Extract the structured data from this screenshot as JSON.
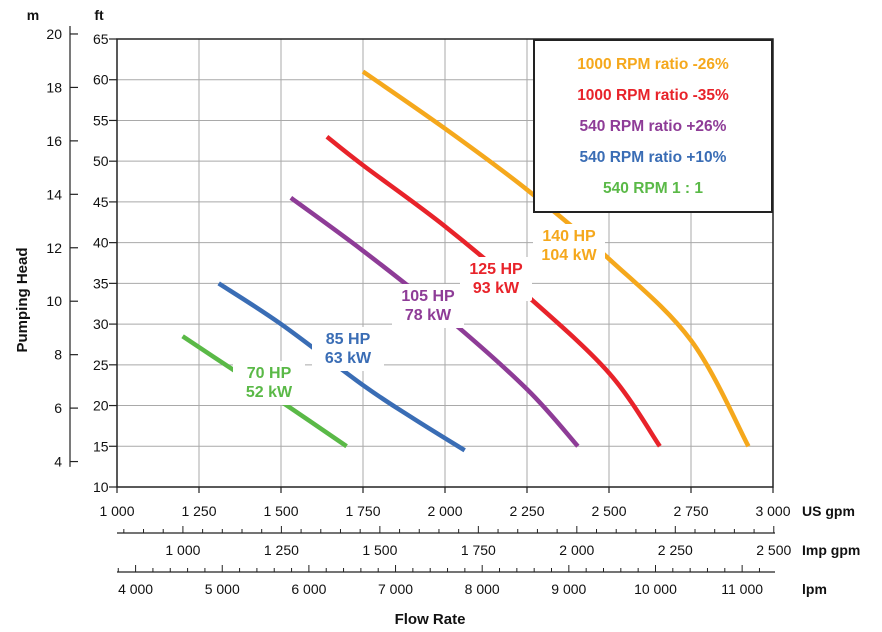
{
  "chart_data": {
    "type": "line",
    "xlabel": "Flow Rate",
    "ylabel": "Pumping Head",
    "x_primary": {
      "unit": "US gpm",
      "range": [
        1000,
        3000
      ],
      "ticks": [
        1000,
        1250,
        1500,
        1750,
        2000,
        2250,
        2500,
        2750,
        3000
      ],
      "tick_labels": [
        "1 000",
        "1 250",
        "1 500",
        "1 750",
        "2 000",
        "2 250",
        "2 500",
        "2 750",
        "3 000"
      ]
    },
    "x_secondary_imp": {
      "unit": "Imp gpm",
      "ticks": [
        1000,
        1250,
        1500,
        1750,
        2000,
        2250,
        2500
      ],
      "tick_labels": [
        "1 000",
        "1 250",
        "1 500",
        "1 750",
        "2 000",
        "2 250",
        "2 500"
      ]
    },
    "x_secondary_lpm": {
      "unit": "lpm",
      "ticks": [
        4000,
        5000,
        6000,
        7000,
        8000,
        9000,
        10000,
        11000
      ],
      "tick_labels": [
        "4 000",
        "5 000",
        "6 000",
        "7 000",
        "8 000",
        "9 000",
        "10 000",
        "11 000"
      ]
    },
    "y_primary": {
      "unit": "ft",
      "range": [
        10,
        65
      ],
      "ticks": [
        10,
        15,
        20,
        25,
        30,
        35,
        40,
        45,
        50,
        55,
        60,
        65
      ],
      "tick_labels": [
        "10",
        "15",
        "20",
        "25",
        "30",
        "35",
        "40",
        "45",
        "50",
        "55",
        "60",
        "65"
      ]
    },
    "y_secondary": {
      "unit": "m",
      "ticks": [
        4,
        6,
        8,
        10,
        12,
        14,
        16,
        18,
        20
      ],
      "tick_labels": [
        "4",
        "6",
        "8",
        "10",
        "12",
        "14",
        "16",
        "18",
        "20"
      ]
    },
    "grid": true,
    "legend_position": "top-right",
    "series": [
      {
        "name": "1000 RPM ratio -26%",
        "color": "#F5A81C",
        "x": [
          1750,
          2000,
          2250,
          2500,
          2750,
          2925
        ],
        "y": [
          61,
          54,
          46.5,
          38,
          28,
          15
        ],
        "label_hp": "140 HP",
        "label_kw": "104 kW"
      },
      {
        "name": "1000 RPM ratio -35%",
        "color": "#E8232A",
        "x": [
          1640,
          1750,
          2000,
          2250,
          2500,
          2655
        ],
        "y": [
          53,
          49.5,
          42,
          33.5,
          24,
          15
        ],
        "label_hp": "125 HP",
        "label_kw": "93 kW"
      },
      {
        "name": "540 RPM ratio +26%",
        "color": "#8E3C97",
        "x": [
          1530,
          1750,
          2000,
          2250,
          2405
        ],
        "y": [
          45.5,
          39,
          31,
          22,
          15
        ],
        "label_hp": "105 HP",
        "label_kw": "78 kW"
      },
      {
        "name": "540 RPM ratio +10%",
        "color": "#3A6DB5",
        "x": [
          1310,
          1500,
          1750,
          1900,
          2060
        ],
        "y": [
          35,
          30,
          22.5,
          18.5,
          14.5
        ],
        "label_hp": "85 HP",
        "label_kw": "63 kW"
      },
      {
        "name": "540 RPM 1 : 1",
        "color": "#5AB947",
        "x": [
          1200,
          1350,
          1500,
          1700
        ],
        "y": [
          28.5,
          24.5,
          20.5,
          15
        ],
        "label_hp": "70 HP",
        "label_kw": "52 kW"
      }
    ]
  }
}
